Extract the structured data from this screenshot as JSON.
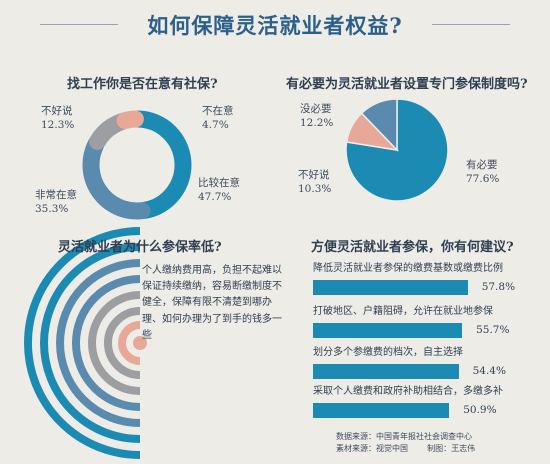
{
  "title": "如何保障灵活就业者权益?",
  "colors": {
    "blue": "#1b8bb4",
    "steel": "#5a8aae",
    "gray": "#9c9ea1",
    "salmon": "#e8a898"
  },
  "chart_data": [
    {
      "type": "pie",
      "variant": "donut",
      "title": "找工作你是否在意有社保?",
      "categories": [
        "比较在意",
        "非常在意",
        "不好说",
        "不在意"
      ],
      "values": [
        47.7,
        35.3,
        12.3,
        4.7
      ],
      "labels": [
        "47.7%",
        "35.3%",
        "12.3%",
        "4.7%"
      ],
      "colors": [
        "#1b8bb4",
        "#5a8aae",
        "#9c9ea1",
        "#e8a898"
      ]
    },
    {
      "type": "pie",
      "title": "有必要为灵活就业者设置专门参保制度吗?",
      "categories": [
        "有必要",
        "不好说",
        "没必要"
      ],
      "values": [
        77.6,
        10.3,
        12.2
      ],
      "labels": [
        "77.6%",
        "10.3%",
        "12.2%"
      ],
      "colors": [
        "#1b8bb4",
        "#e8a898",
        "#5a8aae"
      ]
    },
    {
      "type": "radial_bar",
      "title": "灵活就业者为什么参保率低?",
      "reasons": [
        "个人缴纳费用高，负担不起",
        "难以保证持续缴纳，容易断缴",
        "制度不健全，保障有限",
        "不清楚到哪办理、如何办理",
        "为了到手的钱多一些"
      ],
      "reason_text": "个人缴纳费用高，负担不起难以保证持续缴纳，容易断缴制度不健全，保障有限不清楚到哪办理、如何办理为了到手的钱多一些",
      "colors": [
        "#1b8bb4",
        "#5a8aae",
        "#5a8aae",
        "#9c9ea1",
        "#e8a898"
      ]
    },
    {
      "type": "bar",
      "orientation": "horizontal",
      "title": "方便灵活就业者参保，你有何建议?",
      "categories": [
        "降低灵活就业者参保的缴费基数或缴费比例",
        "打破地区、户籍阻碍，允许在就业地参保",
        "划分多个参缴费的档次，自主选择",
        "采取个人缴费和政府补助相结合，多缴多补"
      ],
      "values": [
        57.8,
        55.7,
        54.4,
        50.9
      ],
      "labels": [
        "57.8%",
        "55.7%",
        "54.4%",
        "50.9%"
      ]
    }
  ],
  "credits": {
    "source": "数据来源：中国青年报社社会调查中心",
    "material": "素材来源：视觉中国",
    "producer": "制图：王志伟"
  }
}
